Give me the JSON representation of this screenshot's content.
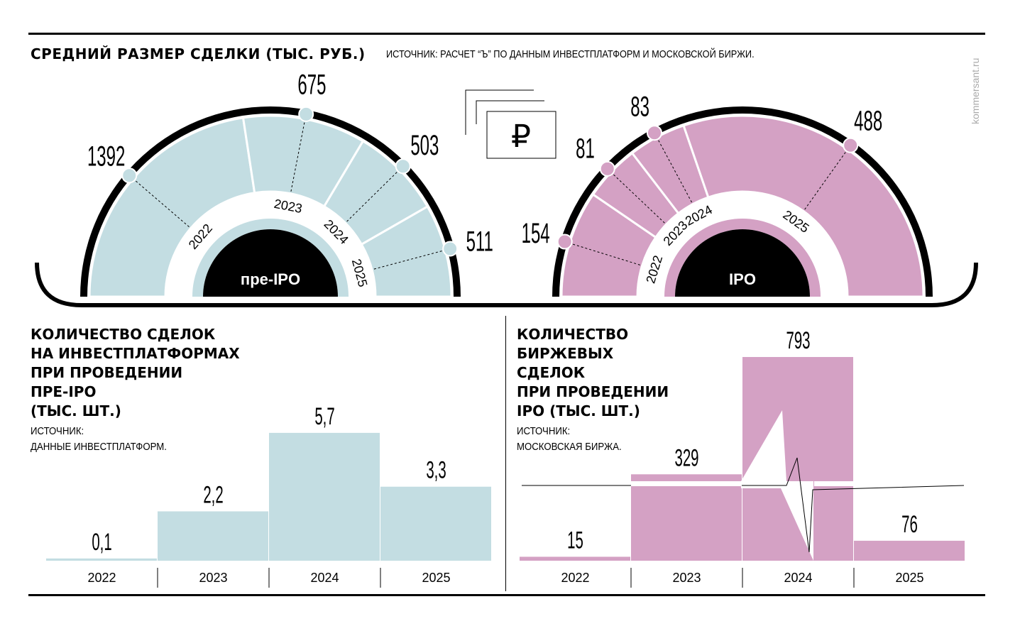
{
  "header": {
    "title": "СРЕДНИЙ РАЗМЕР СДЕЛКИ (ТЫС. РУБ.)",
    "source": "ИСТОЧНИК: РАСЧЕТ “Ъ” ПО ДАННЫМ ИНВЕСТПЛАТФОРМ И МОСКОВСКОЙ БИРЖИ.",
    "watermark": "kommersant.ru",
    "icon": "ruble-icon"
  },
  "colors": {
    "pre_ipo": "#c3dde2",
    "ipo": "#d4a1c4",
    "ring": "#000000"
  },
  "chart_data": [
    {
      "type": "pie",
      "subtype": "semicircle",
      "center_label": "пре-IPO",
      "categories": [
        "2022",
        "2023",
        "2024",
        "2025"
      ],
      "values": [
        1392,
        675,
        503,
        511
      ],
      "labels": [
        "1392",
        "675",
        "503",
        "511"
      ]
    },
    {
      "type": "pie",
      "subtype": "semicircle",
      "center_label": "IPO",
      "categories": [
        "2022",
        "2023",
        "2024",
        "2025"
      ],
      "values": [
        154,
        81,
        83,
        488
      ],
      "labels": [
        "154",
        "81",
        "83",
        "488"
      ]
    },
    {
      "type": "bar",
      "title": "КОЛИЧЕСТВО СДЕЛОК\nНА ИНВЕСТПЛАТФОРМАХ\nПРИ ПРОВЕДЕНИИ\nПРЕ-IPO\n(ТЫС. ШТ.)",
      "source": "ИСТОЧНИК:\nДАННЫЕ ИНВЕСТПЛАТФОРМ.",
      "categories": [
        "2022",
        "2023",
        "2024",
        "2025"
      ],
      "values": [
        0.1,
        2.2,
        5.7,
        3.3
      ],
      "labels": [
        "0,1",
        "2,2",
        "5,7",
        "3,3"
      ],
      "ylim": [
        0,
        5.7
      ]
    },
    {
      "type": "bar",
      "title": "КОЛИЧЕСТВО\nБИРЖЕВЫХ\nСДЕЛОК\nПРИ ПРОВЕДЕНИИ\nIPO (ТЫС. ШТ.)",
      "source": "ИСТОЧНИК:\nМОСКОВСКАЯ БИРЖА.",
      "categories": [
        "2022",
        "2023",
        "2024",
        "2025"
      ],
      "values": [
        15,
        329,
        793,
        76
      ],
      "labels": [
        "15",
        "329",
        "793",
        "76"
      ],
      "axis_break": true
    }
  ]
}
